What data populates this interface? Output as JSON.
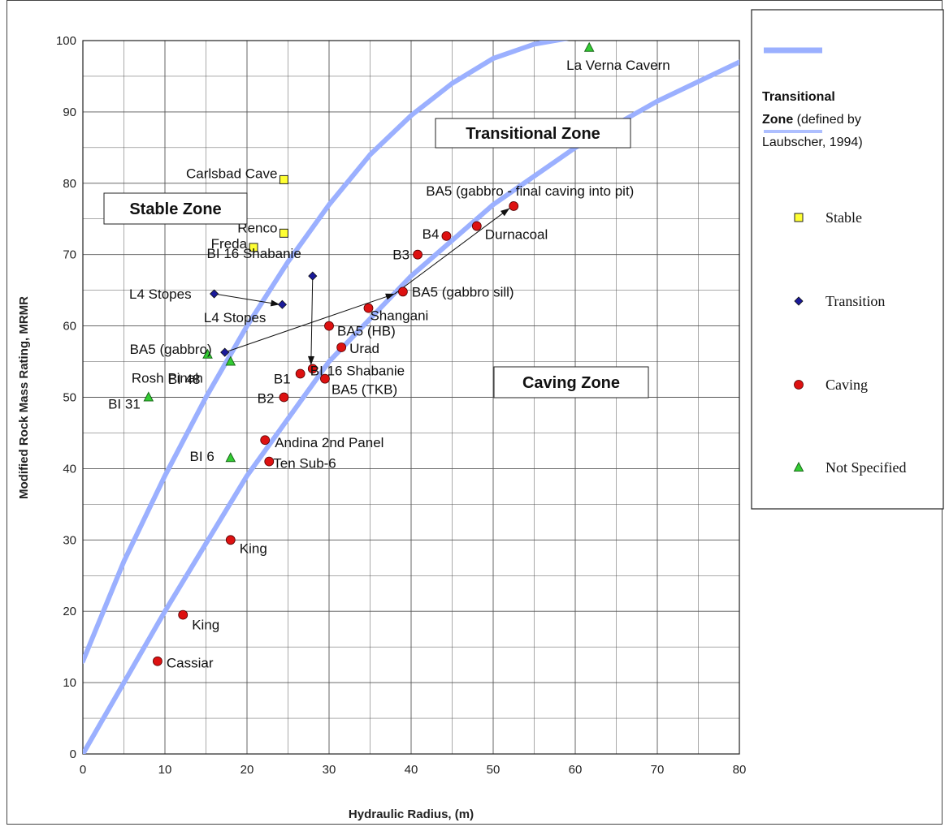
{
  "chart_data": {
    "type": "scatter",
    "xlabel": "Hydraulic Radius, (m)",
    "ylabel": "Modified Rock Mass Rating, MRMR",
    "xlim": [
      0,
      80
    ],
    "ylim": [
      0,
      100
    ],
    "xticks": [
      0,
      10,
      20,
      30,
      40,
      50,
      60,
      70,
      80
    ],
    "yticks": [
      0,
      10,
      20,
      30,
      40,
      50,
      60,
      70,
      80,
      90,
      100
    ],
    "grid": true,
    "legend_position": "right",
    "zone_labels": [
      "Stable Zone",
      "Transitional Zone",
      "Caving Zone"
    ],
    "boundary_curves": [
      {
        "points": [
          [
            0,
            13
          ],
          [
            5,
            27
          ],
          [
            10,
            39
          ],
          [
            15,
            50
          ],
          [
            20,
            60
          ],
          [
            25,
            69
          ],
          [
            30,
            77
          ],
          [
            35,
            84
          ],
          [
            40,
            89.5
          ],
          [
            45,
            94
          ],
          [
            50,
            97.5
          ],
          [
            55,
            99.5
          ],
          [
            60,
            100.5
          ]
        ]
      },
      {
        "points": [
          [
            0,
            0
          ],
          [
            10,
            20
          ],
          [
            20,
            39
          ],
          [
            30,
            55
          ],
          [
            40,
            67
          ],
          [
            50,
            77
          ],
          [
            60,
            85
          ],
          [
            70,
            91.5
          ],
          [
            80,
            97
          ]
        ]
      }
    ],
    "series": [
      {
        "name": "Stable",
        "marker": "square",
        "color": "#ffff33",
        "points": [
          {
            "x": 24.5,
            "y": 80.5,
            "label": "Carlsbad Cave"
          },
          {
            "x": 24.5,
            "y": 73,
            "label": "Renco"
          },
          {
            "x": 20.8,
            "y": 71,
            "label": "Freda"
          }
        ]
      },
      {
        "name": "Transition",
        "marker": "diamond",
        "color": "#1a1a99",
        "points": [
          {
            "x": 28,
            "y": 67,
            "label": "BI 16 Shabanie"
          },
          {
            "x": 16,
            "y": 64.5,
            "label": "L4 Stopes"
          },
          {
            "x": 24.3,
            "y": 63,
            "label": "L4 Stopes"
          },
          {
            "x": 17.3,
            "y": 56.3,
            "label": "BA5 (gabbro)"
          }
        ]
      },
      {
        "name": "Caving",
        "marker": "circle",
        "color": "#dd1111",
        "points": [
          {
            "x": 52.5,
            "y": 76.8,
            "label": "BA5 (gabbro - final caving into pit)"
          },
          {
            "x": 48,
            "y": 74,
            "label": "Durnacoal"
          },
          {
            "x": 44.3,
            "y": 72.6,
            "label": "B4"
          },
          {
            "x": 40.8,
            "y": 70,
            "label": "B3"
          },
          {
            "x": 39,
            "y": 64.8,
            "label": "BA5 (gabbro sill)"
          },
          {
            "x": 34.8,
            "y": 62.5,
            "label": "Shangani"
          },
          {
            "x": 30,
            "y": 60,
            "label": "BA5 (HB)"
          },
          {
            "x": 31.5,
            "y": 57,
            "label": "Urad"
          },
          {
            "x": 28,
            "y": 54,
            "label": "BI 16 Shabanie"
          },
          {
            "x": 26.5,
            "y": 53.3,
            "label": "B1"
          },
          {
            "x": 29.5,
            "y": 52.6,
            "label": "BA5 (TKB)"
          },
          {
            "x": 24.5,
            "y": 50,
            "label": "B2"
          },
          {
            "x": 22.2,
            "y": 44,
            "label": "Andina 2nd Panel"
          },
          {
            "x": 22.7,
            "y": 41,
            "label": "Ten Sub-6"
          },
          {
            "x": 18,
            "y": 30,
            "label": "King"
          },
          {
            "x": 12.2,
            "y": 19.5,
            "label": "King"
          },
          {
            "x": 9.1,
            "y": 13,
            "label": "Cassiar"
          }
        ]
      },
      {
        "name": "Not Specified",
        "marker": "triangle",
        "color": "#33cc33",
        "points": [
          {
            "x": 61.7,
            "y": 99,
            "label": "La Verna Cavern"
          },
          {
            "x": 15.2,
            "y": 56,
            "label": "BI 48"
          },
          {
            "x": 18,
            "y": 55,
            "label": "Rosh Pinah"
          },
          {
            "x": 8,
            "y": 50,
            "label": "BI 31"
          },
          {
            "x": 18,
            "y": 41.5,
            "label": "BI 6"
          }
        ]
      }
    ],
    "arrows": [
      {
        "from": [
          16,
          64.5
        ],
        "to": [
          24,
          63
        ]
      },
      {
        "from": [
          28,
          67
        ],
        "to": [
          27.8,
          54.5
        ]
      },
      {
        "from": [
          17.3,
          56.3
        ],
        "to": [
          38,
          64.5
        ]
      },
      {
        "from": [
          38,
          64.5
        ],
        "to": [
          52,
          76.5
        ]
      }
    ],
    "legend": {
      "zone_title": "Transitional",
      "zone_bold": "Zone",
      "zone_rest": " (defined by",
      "zone_line3": "Laubscher, 1994)"
    }
  }
}
